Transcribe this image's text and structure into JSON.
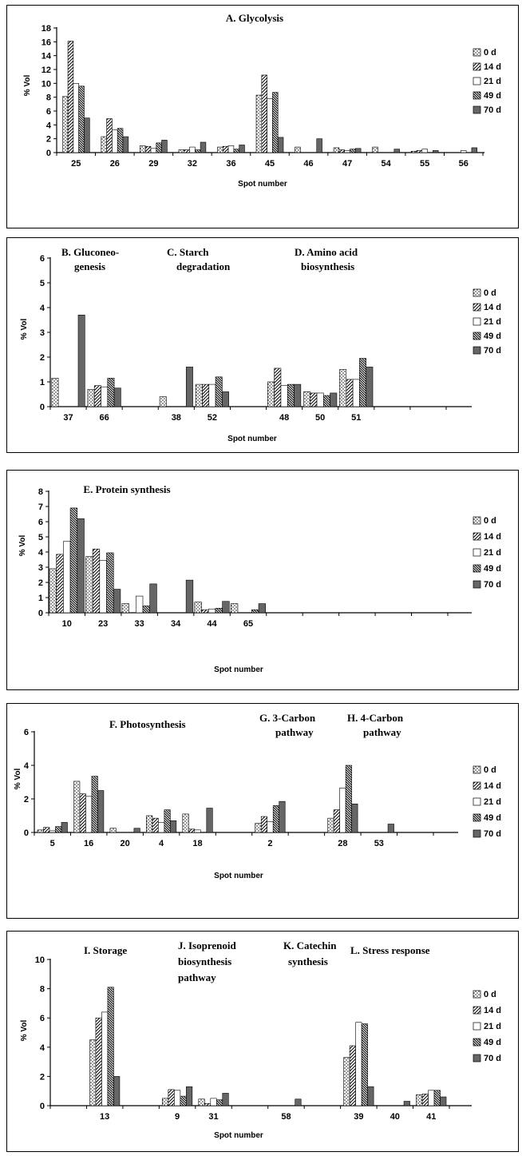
{
  "legend_labels": [
    "0 d",
    "14 d",
    "21 d",
    "49 d",
    "70 d"
  ],
  "chart_data": [
    {
      "type": "bar",
      "annotations": [
        "A. Glycolysis"
      ],
      "xlabel": "Spot number",
      "ylabel": "% Vol",
      "ylim": [
        0,
        18
      ],
      "yticks": [
        0,
        2,
        4,
        6,
        8,
        10,
        12,
        14,
        16,
        18
      ],
      "categories": [
        "25",
        "26",
        "29",
        "32",
        "36",
        "45",
        "46",
        "47",
        "54",
        "55",
        "56"
      ],
      "series": [
        {
          "name": "0 d",
          "values": [
            8.1,
            2.3,
            1.0,
            0.4,
            0.8,
            8.3,
            0.8,
            0.7,
            0.8,
            0.2,
            0.0
          ]
        },
        {
          "name": "14 d",
          "values": [
            16.1,
            4.9,
            0.9,
            0.4,
            0.9,
            11.2,
            0.0,
            0.4,
            0.0,
            0.3,
            0.0
          ]
        },
        {
          "name": "21 d",
          "values": [
            10.0,
            3.3,
            0.6,
            0.8,
            1.0,
            7.8,
            0.0,
            0.3,
            0.0,
            0.5,
            0.3
          ]
        },
        {
          "name": "49 d",
          "values": [
            9.6,
            3.5,
            1.4,
            0.4,
            0.5,
            8.7,
            0.0,
            0.5,
            0.0,
            0.0,
            0.0
          ]
        },
        {
          "name": "70 d",
          "values": [
            5.0,
            2.3,
            1.8,
            1.5,
            1.1,
            2.2,
            2.0,
            0.6,
            0.5,
            0.3,
            0.7
          ]
        }
      ]
    },
    {
      "type": "bar",
      "annotations": [
        "B. Gluconeo-",
        "genesis",
        "C. Starch",
        "degradation",
        "D. Amino acid",
        "biosynthesis"
      ],
      "xlabel": "Spot number",
      "ylabel": "% Vol",
      "ylim": [
        0,
        6
      ],
      "yticks": [
        0,
        1,
        2,
        3,
        4,
        5,
        6
      ],
      "categories": [
        "37",
        "66",
        "",
        "38",
        "52",
        "",
        "48",
        "50",
        "51",
        "",
        ""
      ],
      "series": [
        {
          "name": "0 d",
          "values": [
            1.15,
            0.7,
            0,
            0.4,
            0.9,
            0,
            1.0,
            0.6,
            1.5,
            0,
            0
          ]
        },
        {
          "name": "14 d",
          "values": [
            0,
            0.85,
            0,
            0,
            0.9,
            0,
            1.55,
            0.55,
            1.1,
            0,
            0
          ]
        },
        {
          "name": "21 d",
          "values": [
            0,
            0.8,
            0,
            0,
            0.9,
            0,
            0.85,
            0.55,
            1.1,
            0,
            0
          ]
        },
        {
          "name": "49 d",
          "values": [
            0,
            1.15,
            0,
            0,
            1.2,
            0,
            0.9,
            0.45,
            1.95,
            0,
            0
          ]
        },
        {
          "name": "70 d",
          "values": [
            3.7,
            0.75,
            0,
            1.6,
            0.6,
            0,
            0.9,
            0.55,
            1.6,
            0,
            0
          ]
        }
      ]
    },
    {
      "type": "bar",
      "annotations": [
        "E. Protein synthesis"
      ],
      "xlabel": "Spot number",
      "ylabel": "% Vol",
      "ylim": [
        0,
        8
      ],
      "yticks": [
        0,
        1,
        2,
        3,
        4,
        5,
        6,
        7,
        8
      ],
      "categories": [
        "10",
        "23",
        "33",
        "34",
        "44",
        "65",
        "",
        "",
        "",
        "",
        ""
      ],
      "series": [
        {
          "name": "0 d",
          "values": [
            2.9,
            3.7,
            0.6,
            0,
            0.7,
            0.6,
            0,
            0,
            0,
            0,
            0
          ]
        },
        {
          "name": "14 d",
          "values": [
            3.85,
            4.2,
            0,
            0,
            0.2,
            0,
            0,
            0,
            0,
            0,
            0
          ]
        },
        {
          "name": "21 d",
          "values": [
            4.7,
            3.45,
            1.1,
            0,
            0.25,
            0,
            0,
            0,
            0,
            0,
            0
          ]
        },
        {
          "name": "49 d",
          "values": [
            6.9,
            3.95,
            0.45,
            0,
            0.3,
            0.2,
            0,
            0,
            0,
            0,
            0
          ]
        },
        {
          "name": "70 d",
          "values": [
            6.2,
            1.55,
            1.9,
            2.15,
            0.75,
            0.6,
            0,
            0,
            0,
            0,
            0
          ]
        }
      ]
    },
    {
      "type": "bar",
      "annotations": [
        "F.  Photosynthesis",
        "G. 3-Carbon",
        "pathway",
        "H. 4-Carbon",
        "pathway"
      ],
      "xlabel": "Spot number",
      "ylabel": "% Vol",
      "ylim": [
        0,
        6
      ],
      "yticks": [
        0,
        2,
        4,
        6
      ],
      "categories": [
        "5",
        "16",
        "20",
        "4",
        "18",
        "",
        "2",
        "",
        "28",
        "53",
        ""
      ],
      "series": [
        {
          "name": "0 d",
          "values": [
            0.15,
            3.05,
            0.25,
            1.0,
            1.1,
            0,
            0.55,
            0,
            0.85,
            0,
            0
          ]
        },
        {
          "name": "14 d",
          "values": [
            0.3,
            2.3,
            0,
            0.85,
            0.2,
            0,
            0.95,
            0,
            1.35,
            0,
            0
          ]
        },
        {
          "name": "21 d",
          "values": [
            0.1,
            2.15,
            0,
            0.6,
            0.15,
            0,
            0.65,
            0,
            2.65,
            0,
            0
          ]
        },
        {
          "name": "49 d",
          "values": [
            0.35,
            3.35,
            0,
            1.35,
            0,
            0,
            1.6,
            0,
            4.0,
            0,
            0
          ]
        },
        {
          "name": "70 d",
          "values": [
            0.6,
            2.5,
            0.25,
            0.7,
            1.45,
            0,
            1.85,
            0,
            1.7,
            0.5,
            0
          ]
        }
      ]
    },
    {
      "type": "bar",
      "annotations": [
        "I. Storage",
        "J. Isoprenoid",
        "biosynthesis",
        "pathway",
        "K. Catechin",
        "synthesis",
        "L. Stress response"
      ],
      "xlabel": "Spot number",
      "ylabel": "% Vol",
      "ylim": [
        0,
        10
      ],
      "yticks": [
        0,
        2,
        4,
        6,
        8,
        10
      ],
      "categories": [
        "",
        "13",
        "",
        "9",
        "31",
        "",
        "58",
        "",
        "39",
        "40",
        "41"
      ],
      "series": [
        {
          "name": "0 d",
          "values": [
            0,
            4.5,
            0,
            0.5,
            0.45,
            0,
            0,
            0,
            3.3,
            0,
            0.75
          ]
        },
        {
          "name": "14 d",
          "values": [
            0,
            6.0,
            0,
            1.1,
            0.15,
            0,
            0,
            0,
            4.1,
            0,
            0.8
          ]
        },
        {
          "name": "21 d",
          "values": [
            0,
            6.4,
            0,
            1.05,
            0.5,
            0,
            0,
            0,
            5.7,
            0,
            1.05
          ]
        },
        {
          "name": "49 d",
          "values": [
            0,
            8.1,
            0,
            0.65,
            0.4,
            0,
            0,
            0,
            5.6,
            0,
            1.05
          ]
        },
        {
          "name": "70 d",
          "values": [
            0,
            2.0,
            0,
            1.3,
            0.85,
            0,
            0.45,
            0,
            1.3,
            0.3,
            0.6
          ]
        }
      ]
    }
  ]
}
